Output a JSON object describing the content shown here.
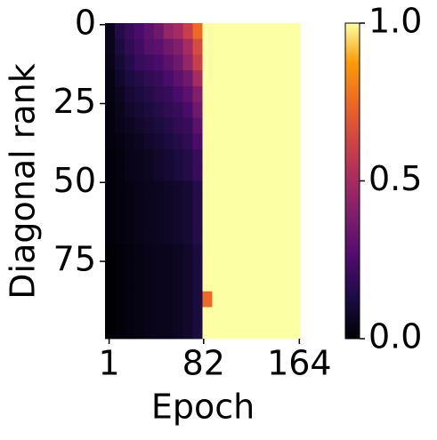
{
  "chart_data": {
    "type": "heatmap",
    "xlabel": "Epoch",
    "ylabel": "Diagonal rank",
    "xlim": [
      -2.5,
      164.5
    ],
    "xticks": [
      1,
      82,
      164
    ],
    "ylim": [
      -0.5,
      99.5
    ],
    "yticks": [
      0,
      25,
      50,
      75
    ],
    "y_inverted": true,
    "colormap": "inferno",
    "clim": [
      0,
      1
    ],
    "cticks": [
      {
        "value": 0,
        "label": "0.0"
      },
      0.5,
      {
        "value": 1,
        "label": "1.0"
      }
    ],
    "z": [
      [
        0.05,
        0.15,
        0.2,
        0.25,
        0.3,
        0.35,
        0.45,
        0.5,
        0.6,
        0.75,
        1,
        1,
        1,
        1,
        1,
        1,
        1,
        1,
        1,
        1
      ],
      [
        0.05,
        0.12,
        0.18,
        0.22,
        0.28,
        0.3,
        0.35,
        0.4,
        0.5,
        0.65,
        1,
        1,
        1,
        1,
        1,
        1,
        1,
        1,
        1,
        1
      ],
      [
        0.04,
        0.1,
        0.15,
        0.2,
        0.22,
        0.25,
        0.3,
        0.35,
        0.45,
        0.6,
        1,
        1,
        1,
        1,
        1,
        1,
        1,
        1,
        1,
        1
      ],
      [
        0.03,
        0.08,
        0.12,
        0.15,
        0.18,
        0.2,
        0.25,
        0.3,
        0.35,
        0.5,
        1,
        1,
        1,
        1,
        1,
        1,
        1,
        1,
        1,
        1
      ],
      [
        0.03,
        0.06,
        0.1,
        0.12,
        0.15,
        0.18,
        0.2,
        0.25,
        0.3,
        0.4,
        1,
        1,
        1,
        1,
        1,
        1,
        1,
        1,
        1,
        1
      ],
      [
        0.02,
        0.05,
        0.08,
        0.1,
        0.12,
        0.15,
        0.18,
        0.2,
        0.25,
        0.35,
        1,
        1,
        1,
        1,
        1,
        1,
        1,
        1,
        1,
        1
      ],
      [
        0.02,
        0.04,
        0.06,
        0.08,
        0.1,
        0.12,
        0.15,
        0.18,
        0.2,
        0.3,
        1,
        1,
        1,
        1,
        1,
        1,
        1,
        1,
        1,
        1
      ],
      [
        0.02,
        0.03,
        0.05,
        0.06,
        0.08,
        0.1,
        0.12,
        0.15,
        0.18,
        0.25,
        1,
        1,
        1,
        1,
        1,
        1,
        1,
        1,
        1,
        1
      ],
      [
        0.01,
        0.02,
        0.04,
        0.05,
        0.06,
        0.08,
        0.1,
        0.12,
        0.15,
        0.2,
        1,
        1,
        1,
        1,
        1,
        1,
        1,
        1,
        1,
        1
      ],
      [
        0.01,
        0.02,
        0.04,
        0.05,
        0.06,
        0.08,
        0.1,
        0.12,
        0.15,
        0.2,
        1,
        1,
        1,
        1,
        1,
        1,
        1,
        1,
        1,
        1
      ],
      [
        0.01,
        0.02,
        0.03,
        0.04,
        0.05,
        0.06,
        0.07,
        0.08,
        0.1,
        0.15,
        1,
        1,
        1,
        1,
        1,
        1,
        1,
        1,
        1,
        1
      ],
      [
        0.01,
        0.02,
        0.03,
        0.04,
        0.05,
        0.06,
        0.07,
        0.08,
        0.1,
        0.15,
        1,
        1,
        1,
        1,
        1,
        1,
        1,
        1,
        1,
        1
      ],
      [
        0.01,
        0.02,
        0.03,
        0.04,
        0.05,
        0.06,
        0.07,
        0.08,
        0.1,
        0.15,
        1,
        1,
        1,
        1,
        1,
        1,
        1,
        1,
        1,
        1
      ],
      [
        0.01,
        0.02,
        0.03,
        0.04,
        0.05,
        0.06,
        0.07,
        0.08,
        0.1,
        0.15,
        1,
        1,
        1,
        1,
        1,
        1,
        1,
        1,
        1,
        1
      ],
      [
        0,
        0.01,
        0.02,
        0.03,
        0.04,
        0.05,
        0.05,
        0.06,
        0.08,
        0.12,
        1,
        1,
        1,
        1,
        1,
        1,
        1,
        1,
        1,
        1
      ],
      [
        0,
        0.01,
        0.02,
        0.03,
        0.04,
        0.05,
        0.05,
        0.06,
        0.08,
        0.12,
        1,
        1,
        1,
        1,
        1,
        1,
        1,
        1,
        1,
        1
      ],
      [
        0,
        0.01,
        0.02,
        0.03,
        0.04,
        0.05,
        0.05,
        0.06,
        0.08,
        0.12,
        1,
        1,
        1,
        1,
        1,
        1,
        1,
        1,
        1,
        1
      ],
      [
        0,
        0.01,
        0.02,
        0.03,
        0.04,
        0.05,
        0.05,
        0.06,
        0.08,
        0.12,
        0.75,
        1,
        1,
        1,
        1,
        1,
        1,
        1,
        1,
        1
      ],
      [
        0,
        0.01,
        0.02,
        0.03,
        0.04,
        0.05,
        0.05,
        0.06,
        0.08,
        0.12,
        1,
        1,
        1,
        1,
        1,
        1,
        1,
        1,
        1,
        1
      ],
      [
        0,
        0.01,
        0.02,
        0.03,
        0.04,
        0.05,
        0.05,
        0.06,
        0.08,
        0.12,
        1,
        1,
        1,
        1,
        1,
        1,
        1,
        1,
        1,
        1
      ]
    ]
  }
}
